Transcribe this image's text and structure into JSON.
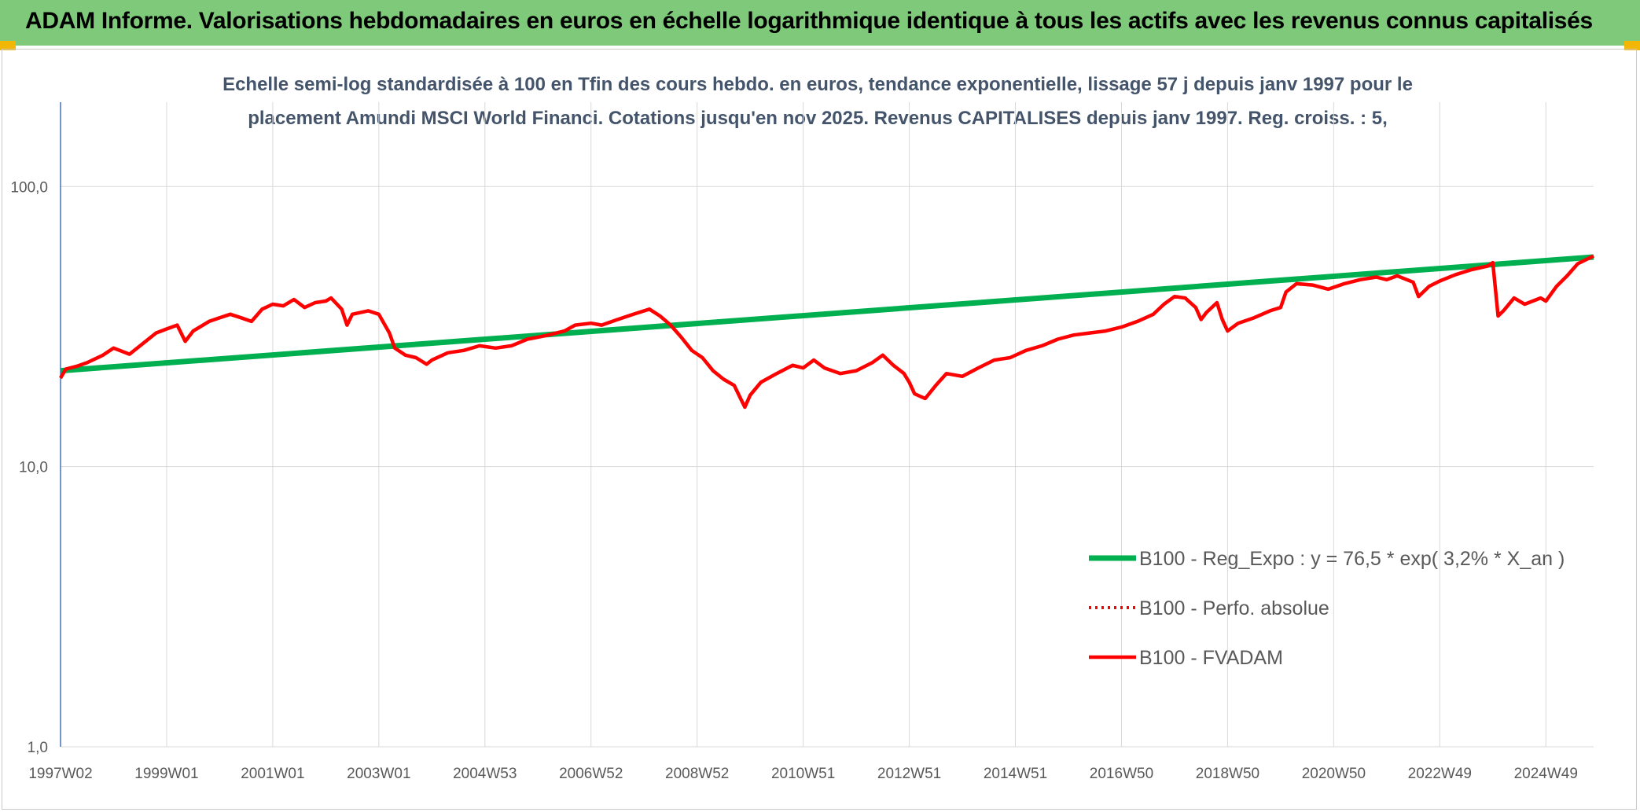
{
  "banner": {
    "title": "ADAM Informe. Valorisations hebdomadaires en euros en échelle logarithmique identique à tous les actifs avec les revenus connus capitalisés"
  },
  "colors": {
    "banner_bg": "#7ec97a",
    "trend": "#00b050",
    "fvadam": "#ff0000",
    "perfo": "#ff0000",
    "corner": "#f2b705"
  },
  "chart_data": {
    "type": "line",
    "subtitle_lines": [
      "Echelle semi-log standardisée à 100 en Tfin des cours hebdo. en euros, tendance exponentielle, lissage 57 j depuis janv 1997 pour le",
      "placement Amundi MSCI World Financi. Cotations jusqu'en nov 2025. Revenus CAPITALISES depuis janv 1997. Reg. croiss. : 5,"
    ],
    "y_scale": "log",
    "ylim": [
      1,
      100
    ],
    "y_ticks": [
      {
        "value": 1,
        "label": "1,0"
      },
      {
        "value": 10,
        "label": "10,0"
      },
      {
        "value": 100,
        "label": "100,0"
      }
    ],
    "y_gridline_top": 200,
    "xlim": [
      1997.0,
      2025.9
    ],
    "x_ticks": [
      {
        "value": 1997.0,
        "label": "1997W02"
      },
      {
        "value": 1999.0,
        "label": "1999W01"
      },
      {
        "value": 2001.0,
        "label": "2001W01"
      },
      {
        "value": 2003.0,
        "label": "2003W01"
      },
      {
        "value": 2005.0,
        "label": "2004W53"
      },
      {
        "value": 2007.0,
        "label": "2006W52"
      },
      {
        "value": 2009.0,
        "label": "2008W52"
      },
      {
        "value": 2011.0,
        "label": "2010W51"
      },
      {
        "value": 2013.0,
        "label": "2012W51"
      },
      {
        "value": 2015.0,
        "label": "2014W51"
      },
      {
        "value": 2017.0,
        "label": "2016W50"
      },
      {
        "value": 2019.0,
        "label": "2018W50"
      },
      {
        "value": 2021.0,
        "label": "2020W50"
      },
      {
        "value": 2023.0,
        "label": "2022W49"
      },
      {
        "value": 2025.0,
        "label": "2024W49"
      }
    ],
    "grid": true,
    "legend_position": "bottom-right",
    "series": [
      {
        "name": "B100 - Reg_Expo : y = 76,5 * exp( 3,2% *  X_an )",
        "style": "solid-thick",
        "points": [
          [
            1997.0,
            22.0
          ],
          [
            2025.9,
            56.0
          ]
        ]
      },
      {
        "name": "B100 - Perfo. absolue",
        "style": "dotted",
        "points": []
      },
      {
        "name": "B100 - FVADAM",
        "style": "solid",
        "points": [
          [
            1997.0,
            20.7
          ],
          [
            1997.1,
            22.3
          ],
          [
            1997.3,
            22.8
          ],
          [
            1997.5,
            23.5
          ],
          [
            1997.8,
            25.0
          ],
          [
            1998.0,
            26.5
          ],
          [
            1998.3,
            25.2
          ],
          [
            1998.5,
            27.0
          ],
          [
            1998.8,
            30.0
          ],
          [
            1999.0,
            31.0
          ],
          [
            1999.2,
            32.0
          ],
          [
            1999.35,
            28.0
          ],
          [
            1999.5,
            30.5
          ],
          [
            1999.8,
            33.0
          ],
          [
            2000.0,
            34.0
          ],
          [
            2000.2,
            35.0
          ],
          [
            2000.4,
            34.0
          ],
          [
            2000.6,
            33.0
          ],
          [
            2000.8,
            36.5
          ],
          [
            2001.0,
            38.0
          ],
          [
            2001.2,
            37.5
          ],
          [
            2001.4,
            39.5
          ],
          [
            2001.6,
            37.0
          ],
          [
            2001.8,
            38.5
          ],
          [
            2002.0,
            39.0
          ],
          [
            2002.1,
            40.0
          ],
          [
            2002.3,
            36.5
          ],
          [
            2002.4,
            32.0
          ],
          [
            2002.5,
            35.0
          ],
          [
            2002.8,
            36.0
          ],
          [
            2003.0,
            35.0
          ],
          [
            2003.2,
            30.0
          ],
          [
            2003.3,
            26.5
          ],
          [
            2003.5,
            25.0
          ],
          [
            2003.7,
            24.5
          ],
          [
            2003.9,
            23.2
          ],
          [
            2004.0,
            24.0
          ],
          [
            2004.3,
            25.5
          ],
          [
            2004.6,
            26.0
          ],
          [
            2004.9,
            27.0
          ],
          [
            2005.2,
            26.5
          ],
          [
            2005.5,
            27.0
          ],
          [
            2005.8,
            28.5
          ],
          [
            2006.0,
            29.0
          ],
          [
            2006.2,
            29.5
          ],
          [
            2006.5,
            30.5
          ],
          [
            2006.7,
            32.0
          ],
          [
            2007.0,
            32.5
          ],
          [
            2007.2,
            32.0
          ],
          [
            2007.5,
            33.5
          ],
          [
            2007.8,
            35.0
          ],
          [
            2008.1,
            36.5
          ],
          [
            2008.3,
            34.5
          ],
          [
            2008.5,
            32.0
          ],
          [
            2008.7,
            29.0
          ],
          [
            2008.9,
            26.0
          ],
          [
            2009.1,
            24.5
          ],
          [
            2009.3,
            22.0
          ],
          [
            2009.5,
            20.5
          ],
          [
            2009.7,
            19.5
          ],
          [
            2009.8,
            17.8
          ],
          [
            2009.9,
            16.3
          ],
          [
            2010.0,
            18.0
          ],
          [
            2010.2,
            20.0
          ],
          [
            2010.5,
            21.5
          ],
          [
            2010.8,
            23.0
          ],
          [
            2011.0,
            22.5
          ],
          [
            2011.2,
            24.0
          ],
          [
            2011.4,
            22.5
          ],
          [
            2011.7,
            21.5
          ],
          [
            2012.0,
            22.0
          ],
          [
            2012.3,
            23.5
          ],
          [
            2012.5,
            25.0
          ],
          [
            2012.7,
            23.0
          ],
          [
            2012.9,
            21.5
          ],
          [
            2013.0,
            20.0
          ],
          [
            2013.1,
            18.2
          ],
          [
            2013.3,
            17.5
          ],
          [
            2013.5,
            19.5
          ],
          [
            2013.7,
            21.5
          ],
          [
            2014.0,
            21.0
          ],
          [
            2014.3,
            22.5
          ],
          [
            2014.6,
            24.0
          ],
          [
            2014.9,
            24.5
          ],
          [
            2015.2,
            26.0
          ],
          [
            2015.5,
            27.0
          ],
          [
            2015.8,
            28.5
          ],
          [
            2016.1,
            29.5
          ],
          [
            2016.4,
            30.0
          ],
          [
            2016.7,
            30.5
          ],
          [
            2017.0,
            31.5
          ],
          [
            2017.3,
            33.0
          ],
          [
            2017.6,
            35.0
          ],
          [
            2017.8,
            38.0
          ],
          [
            2018.0,
            40.5
          ],
          [
            2018.2,
            40.0
          ],
          [
            2018.4,
            37.0
          ],
          [
            2018.5,
            33.5
          ],
          [
            2018.6,
            35.5
          ],
          [
            2018.8,
            38.5
          ],
          [
            2018.9,
            33.5
          ],
          [
            2019.0,
            30.5
          ],
          [
            2019.2,
            32.5
          ],
          [
            2019.5,
            34.0
          ],
          [
            2019.8,
            36.0
          ],
          [
            2020.0,
            37.0
          ],
          [
            2020.1,
            42.0
          ],
          [
            2020.3,
            45.0
          ],
          [
            2020.6,
            44.5
          ],
          [
            2020.9,
            43.0
          ],
          [
            2021.2,
            45.0
          ],
          [
            2021.5,
            46.5
          ],
          [
            2021.8,
            47.5
          ],
          [
            2022.0,
            46.5
          ],
          [
            2022.2,
            48.0
          ],
          [
            2022.5,
            45.5
          ],
          [
            2022.6,
            40.5
          ],
          [
            2022.8,
            44.0
          ],
          [
            2023.0,
            46.0
          ],
          [
            2023.3,
            48.5
          ],
          [
            2023.6,
            50.5
          ],
          [
            2023.9,
            52.0
          ],
          [
            2024.0,
            53.5
          ],
          [
            2024.1,
            34.5
          ],
          [
            2024.2,
            36.0
          ],
          [
            2024.4,
            40.0
          ],
          [
            2024.6,
            38.0
          ],
          [
            2024.9,
            40.0
          ],
          [
            2025.0,
            39.0
          ],
          [
            2025.2,
            44.0
          ],
          [
            2025.4,
            48.0
          ],
          [
            2025.6,
            53.0
          ],
          [
            2025.9,
            56.5
          ]
        ]
      }
    ]
  }
}
